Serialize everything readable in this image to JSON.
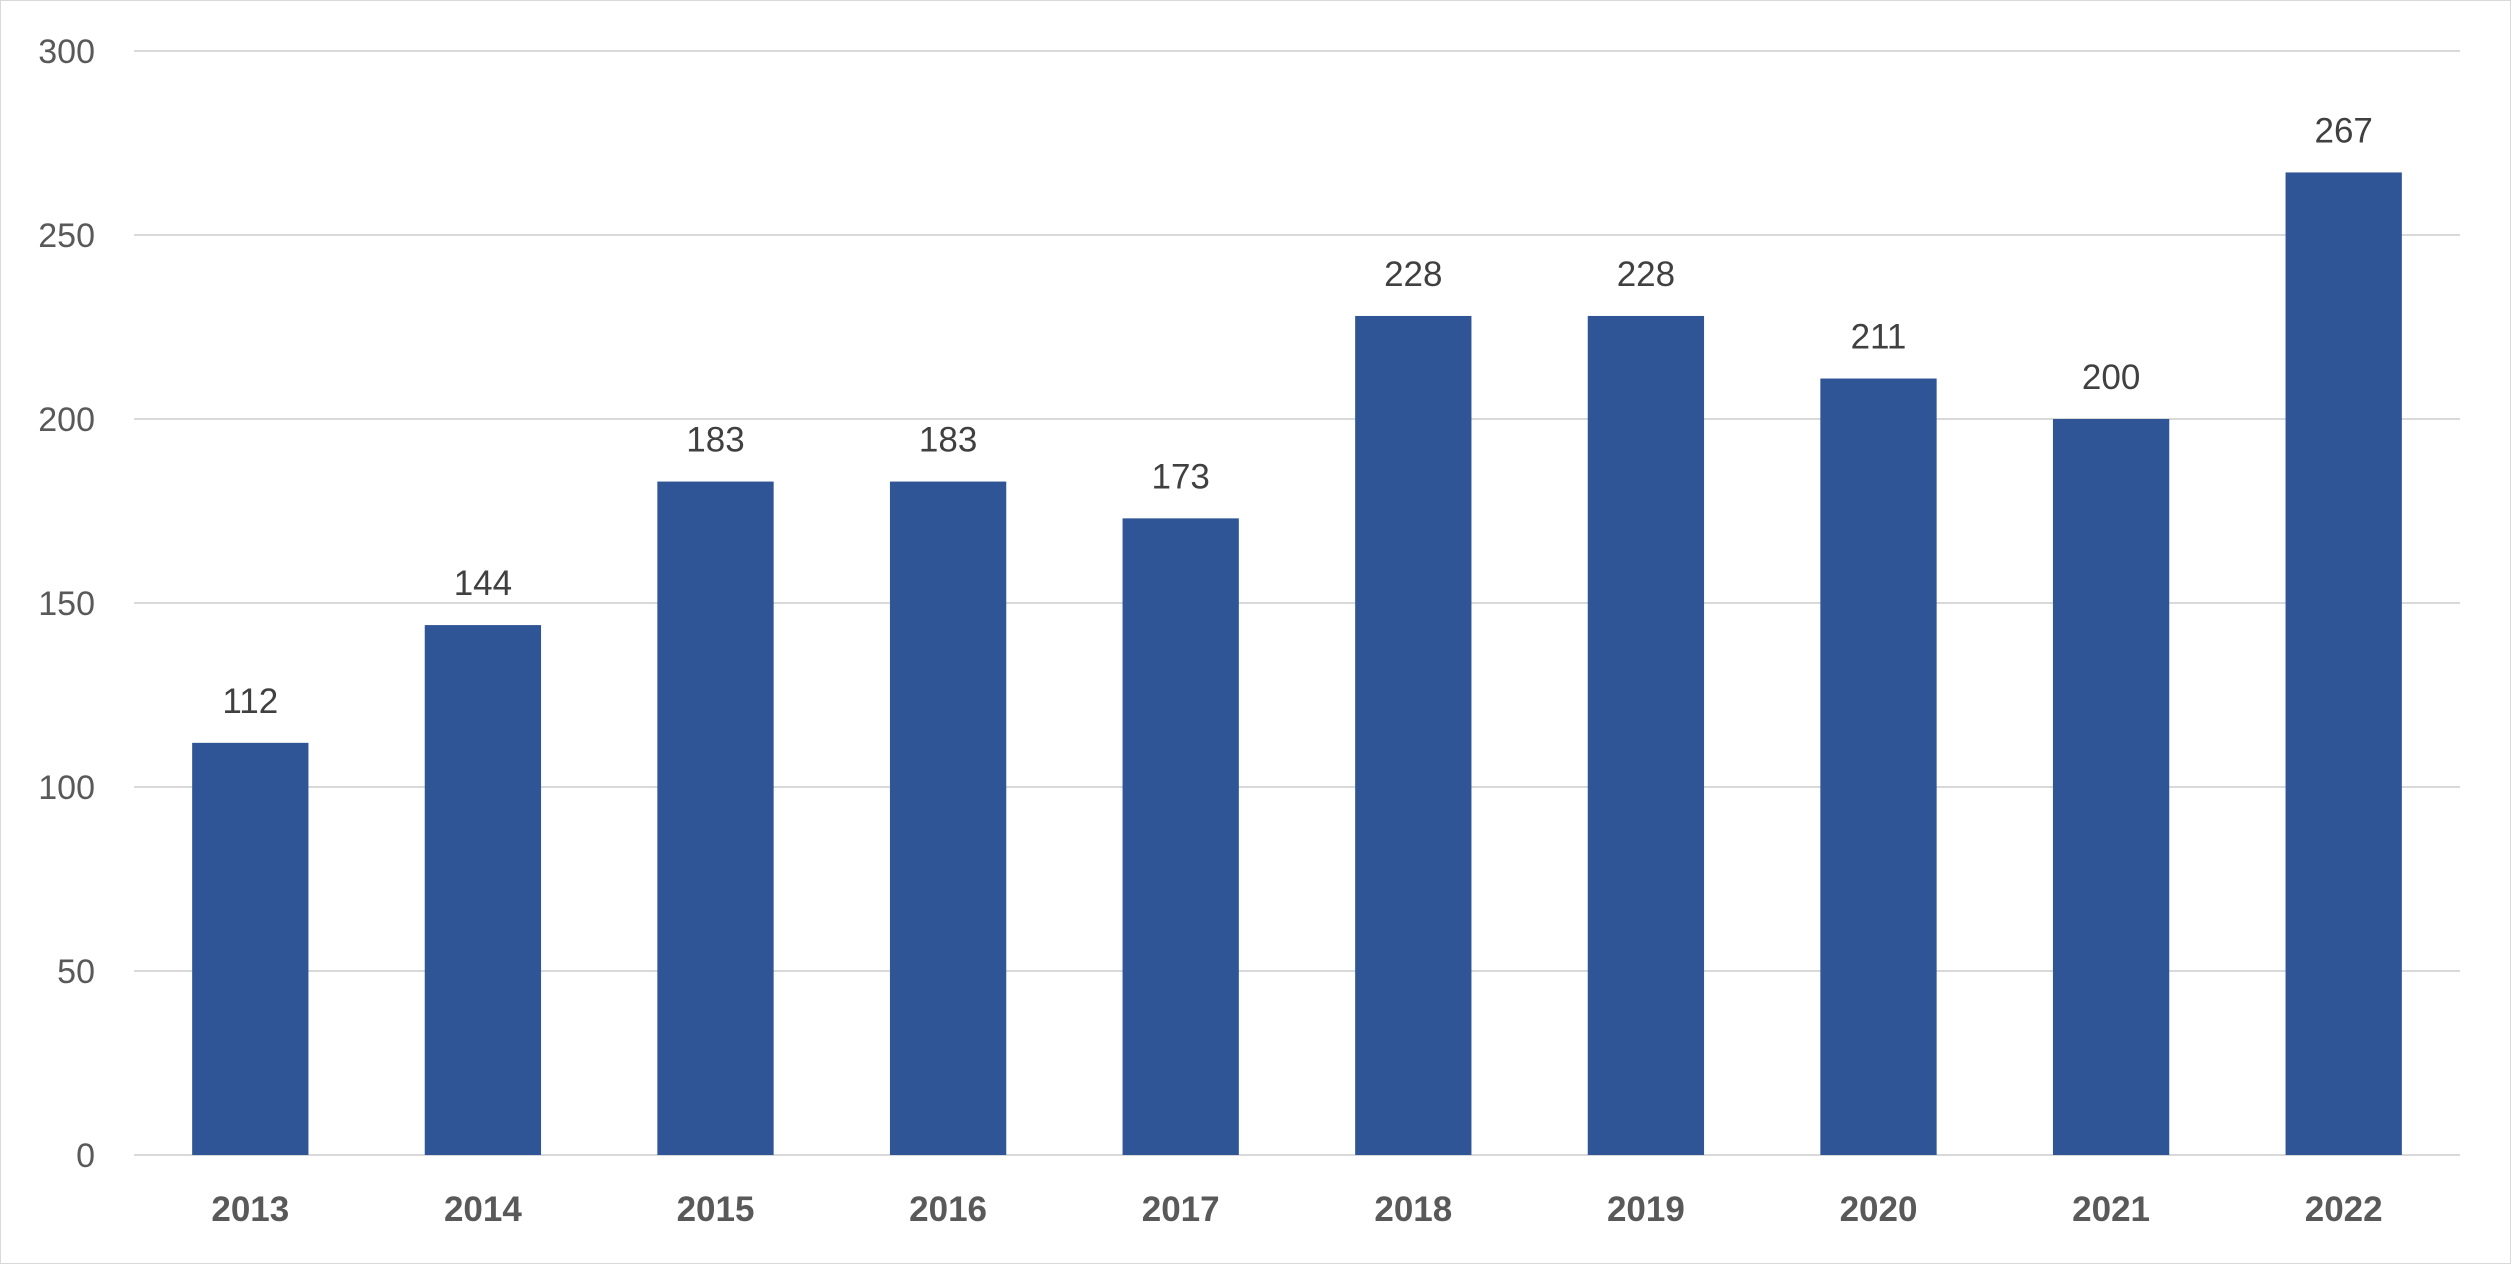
{
  "chart_data": {
    "type": "bar",
    "title": "",
    "xlabel": "",
    "ylabel": "",
    "categories": [
      "2013",
      "2014",
      "2015",
      "2016",
      "2017",
      "2018",
      "2019",
      "2020",
      "2021",
      "2022"
    ],
    "values": [
      112,
      144,
      183,
      183,
      173,
      228,
      228,
      211,
      200,
      267
    ],
    "ylim": [
      0,
      300
    ],
    "yticks": [
      0,
      50,
      100,
      150,
      200,
      250,
      300
    ],
    "grid": true,
    "legend": "none",
    "data_labels": true,
    "bar_color": "#2F5597"
  }
}
